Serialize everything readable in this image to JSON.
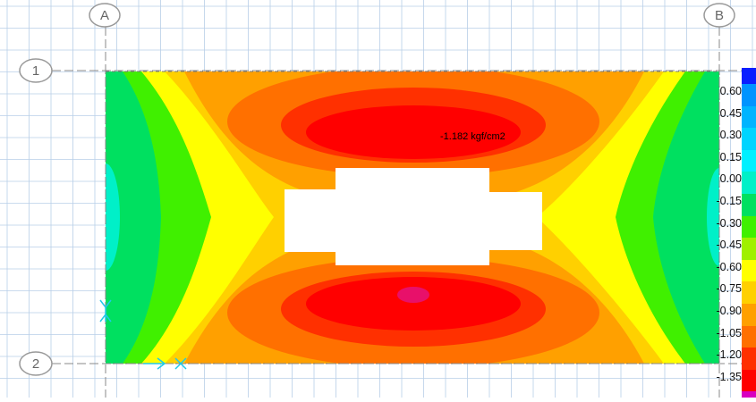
{
  "grid_lines": {
    "columns": [
      "A",
      "B"
    ],
    "rows": [
      "1",
      "2"
    ]
  },
  "annotation": {
    "stress_label": "-1.182 kgf/cm2"
  },
  "legend": {
    "entries": [
      {
        "label": "0.60",
        "color": "#0094ff"
      },
      {
        "label": "0.45",
        "color": "#00b4ff"
      },
      {
        "label": "0.30",
        "color": "#00d4ff"
      },
      {
        "label": "0.15",
        "color": "#00f0ff"
      },
      {
        "label": "0.00",
        "color": "#00f0c8"
      },
      {
        "label": "-0.15",
        "color": "#00e060"
      },
      {
        "label": "-0.30",
        "color": "#40f000"
      },
      {
        "label": "-0.45",
        "color": "#a0f000"
      },
      {
        "label": "-0.60",
        "color": "#ffff00"
      },
      {
        "label": "-0.75",
        "color": "#ffd000"
      },
      {
        "label": "-0.90",
        "color": "#ffa000"
      },
      {
        "label": "-1.05",
        "color": "#ff7000"
      },
      {
        "label": "-1.20",
        "color": "#ff3000"
      },
      {
        "label": "-1.35",
        "color": "#ff0000"
      }
    ],
    "top_color": "#0a1eff",
    "bottom_color": "#d800c0"
  },
  "colors": {
    "grid": "#b8cfe8",
    "axis_line": "#888888",
    "support": "#20c8e8",
    "opening": "#ffffff",
    "peak": "#e8106a"
  }
}
